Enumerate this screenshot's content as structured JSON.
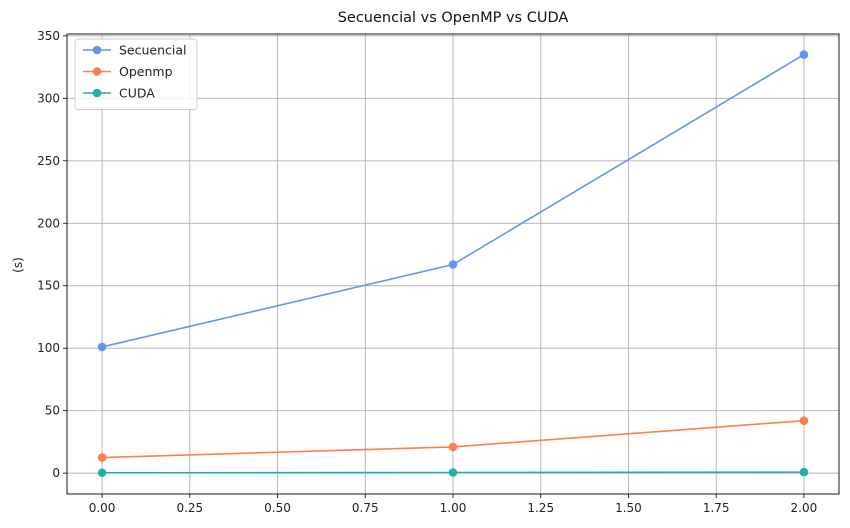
{
  "chart_data": {
    "type": "line",
    "title": "Secuencial vs OpenMP vs CUDA",
    "xlabel": "",
    "ylabel": "(s)",
    "xlim": [
      -0.1,
      2.1
    ],
    "ylim": [
      -16.7,
      351.5
    ],
    "grid": true,
    "legend_position": "upper-left",
    "x_ticks": [
      "0.00",
      "0.25",
      "0.50",
      "0.75",
      "1.00",
      "1.25",
      "1.50",
      "1.75",
      "2.00"
    ],
    "y_ticks": [
      "0",
      "50",
      "100",
      "150",
      "200",
      "250",
      "300",
      "350"
    ],
    "x": [
      0,
      1,
      2
    ],
    "series": [
      {
        "name": "Secuencial",
        "color": "#6495ed",
        "values": [
          101,
          167,
          335
        ]
      },
      {
        "name": "Openmp",
        "color": "#ff7f50",
        "values": [
          12.5,
          21,
          42
        ]
      },
      {
        "name": "CUDA",
        "color": "#20b2aa",
        "values": [
          0.3,
          0.5,
          0.8
        ]
      }
    ]
  }
}
